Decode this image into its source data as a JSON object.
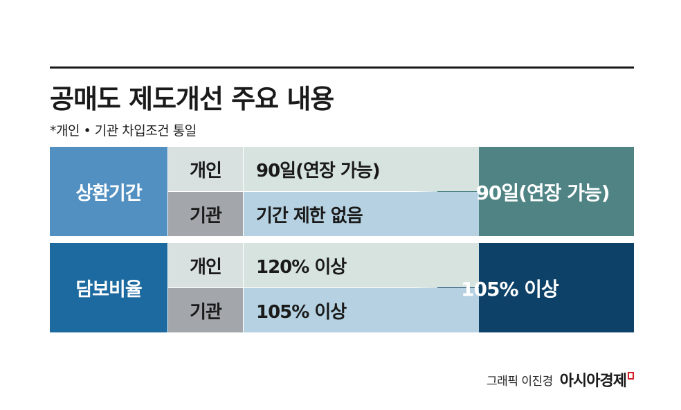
{
  "header": {
    "title": "공매도 제도개선 주요 내용",
    "subtitle": "*개인 • 기관 차입조건 통일"
  },
  "rows": [
    {
      "category": "상환기간",
      "items": [
        {
          "label": "개인",
          "value": "90일(연장 가능)"
        },
        {
          "label": "기관",
          "value": "기간 제한 없음"
        }
      ],
      "result": "90일(연장 가능)"
    },
    {
      "category": "담보비율",
      "items": [
        {
          "label": "개인",
          "value": "120% 이상"
        },
        {
          "label": "기관",
          "value": "105% 이상"
        }
      ],
      "result": "105% 이상"
    }
  ],
  "footer": {
    "credit": "그래픽 이진경",
    "brand": "아시아경제"
  },
  "colors": {
    "result_row1": "#4f8384",
    "result_row2": "#0e4168",
    "cat_row1": "#5290c1",
    "cat_row2": "#1c6aa0",
    "brand_mark": "#d21f26"
  }
}
